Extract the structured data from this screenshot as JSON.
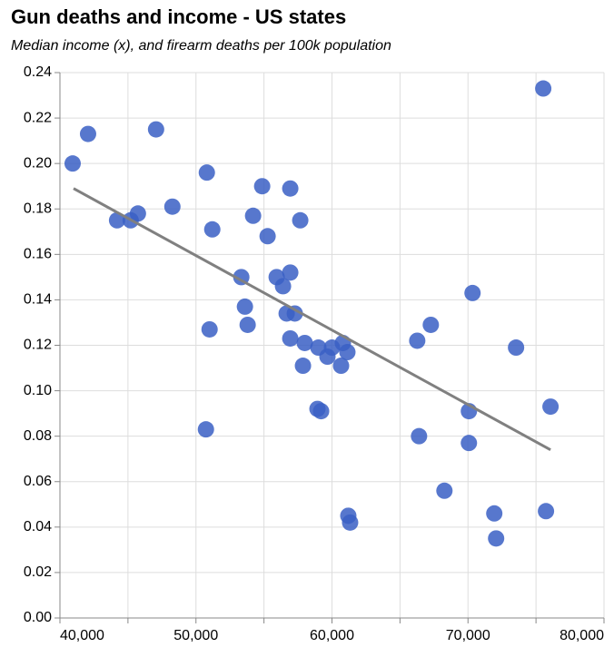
{
  "chart_data": {
    "type": "scatter",
    "title": "Gun deaths and income - US states",
    "subtitle": "Median income (x), and firearm deaths per 100k population",
    "color": "#3a5fc4",
    "x": [
      40933,
      42067,
      44200,
      45200,
      45733,
      47067,
      48267,
      50800,
      51200,
      50733,
      51000,
      53333,
      53600,
      53800,
      54200,
      54867,
      55267,
      55933,
      56400,
      56667,
      56933,
      56933,
      56933,
      57267,
      57667,
      58000,
      57867,
      58933,
      59200,
      59000,
      59667,
      60000,
      60667,
      60800,
      61133,
      61200,
      61333,
      66267,
      66400,
      67267,
      68267,
      70067,
      70067,
      70333,
      71933,
      72067,
      73533,
      75533,
      75733,
      76067
    ],
    "values": [
      0.2,
      0.213,
      0.175,
      0.175,
      0.178,
      0.215,
      0.181,
      0.196,
      0.171,
      0.083,
      0.127,
      0.15,
      0.137,
      0.129,
      0.177,
      0.19,
      0.168,
      0.15,
      0.146,
      0.134,
      0.152,
      0.189,
      0.123,
      0.134,
      0.175,
      0.121,
      0.111,
      0.092,
      0.091,
      0.119,
      0.115,
      0.119,
      0.111,
      0.121,
      0.117,
      0.045,
      0.042,
      0.122,
      0.08,
      0.129,
      0.056,
      0.077,
      0.091,
      0.143,
      0.046,
      0.035,
      0.119,
      0.233,
      0.047,
      0.093
    ],
    "trend_line": {
      "color": "#808080",
      "x": [
        41000,
        76067
      ],
      "y": [
        0.189,
        0.074
      ]
    },
    "xlim": [
      40000,
      80000
    ],
    "xticks": [
      {
        "value": 40000,
        "label": "40,000"
      },
      {
        "value": 50000,
        "label": "50,000"
      },
      {
        "value": 60000,
        "label": "60,000"
      },
      {
        "value": 70000,
        "label": "70,000"
      },
      {
        "value": 80000,
        "label": "80,000"
      }
    ],
    "xminor_ticks": [
      45000,
      55000,
      65000,
      75000
    ],
    "ylim": [
      0,
      0.24
    ],
    "yticks": [
      {
        "value": 0,
        "label": "0.00"
      },
      {
        "value": 0.02,
        "label": "0.02"
      },
      {
        "value": 0.04,
        "label": "0.04"
      },
      {
        "value": 0.06,
        "label": "0.06"
      },
      {
        "value": 0.08,
        "label": "0.08"
      },
      {
        "value": 0.1,
        "label": "0.10"
      },
      {
        "value": 0.12,
        "label": "0.12"
      },
      {
        "value": 0.14,
        "label": "0.14"
      },
      {
        "value": 0.16,
        "label": "0.16"
      },
      {
        "value": 0.18,
        "label": "0.18"
      },
      {
        "value": 0.2,
        "label": "0.20"
      },
      {
        "value": 0.22,
        "label": "0.22"
      },
      {
        "value": 0.24,
        "label": "0.24"
      }
    ],
    "grid": true
  }
}
